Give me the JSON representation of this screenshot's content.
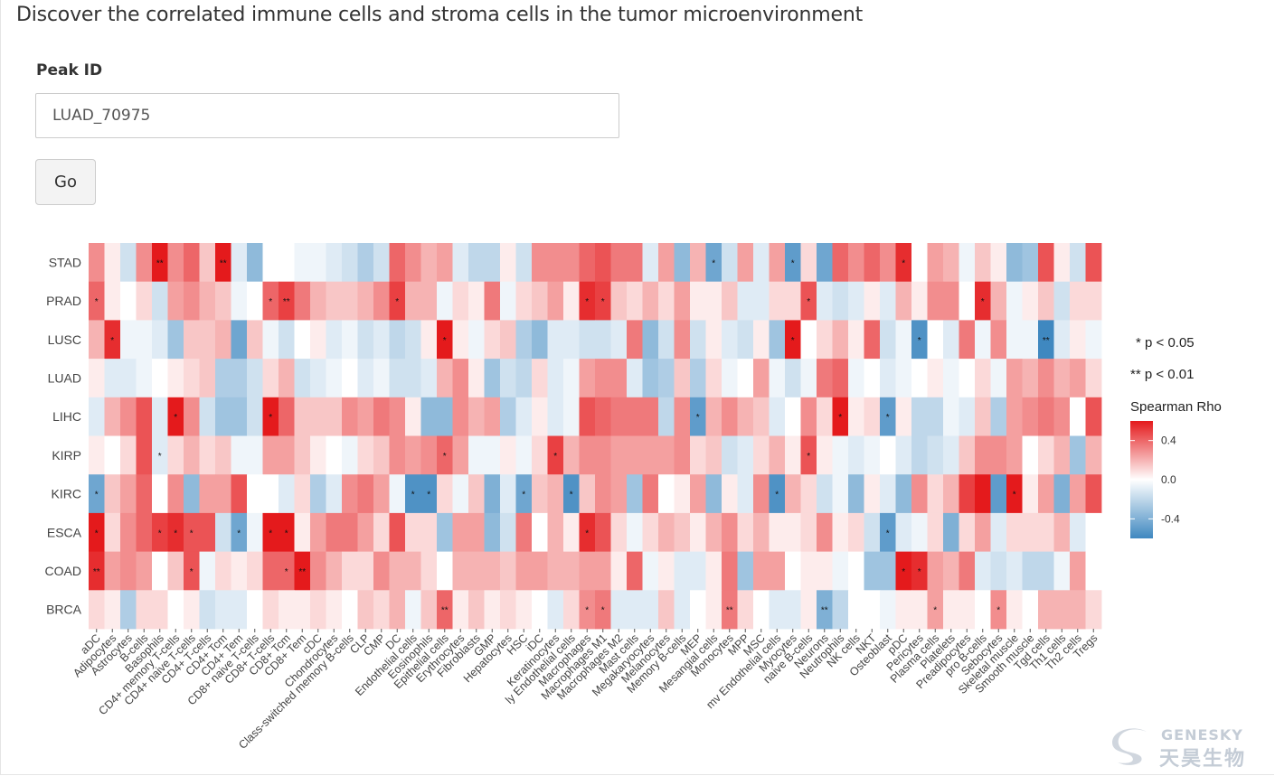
{
  "page": {
    "title": "Discover the correlated immune cells and stroma cells in the tumor microenvironment"
  },
  "form": {
    "peak_label": "Peak ID",
    "peak_value": "LUAD_70975",
    "go_label": "Go"
  },
  "legend": {
    "p05": "* p < 0.05",
    "p01": "** p < 0.01",
    "title": "Spearman Rho",
    "ticks": [
      "0.4",
      "0.0",
      "-0.4"
    ],
    "tick_values": [
      0.4,
      0.0,
      -0.4
    ]
  },
  "colors": {
    "high": "#e41a1c",
    "mid": "#ffffff",
    "low": "#3f88c0"
  },
  "logo": {
    "en": "GENESKY",
    "cn": "天昊生物"
  },
  "chart_data": {
    "type": "heatmap",
    "rows": [
      "STAD",
      "PRAD",
      "LUSC",
      "LUAD",
      "LIHC",
      "KIRP",
      "KIRC",
      "ESCA",
      "COAD",
      "BRCA"
    ],
    "columns": [
      "aDC",
      "Adipocytes",
      "Astrocytes",
      "B-cells",
      "Basophils",
      "CD4+ memory T-cells",
      "CD4+ naive T-cells",
      "CD4+ T-cells",
      "CD4+ Tcm",
      "CD4+ Tem",
      "CD8+ naive T-cells",
      "CD8+ T-cells",
      "CD8+ Tcm",
      "CD8+ Tem",
      "cDC",
      "Chondrocytes",
      "Class-switched memory B-cells",
      "CLP",
      "CMP",
      "DC",
      "Endothelial cells",
      "Eosinophils",
      "Epithelial cells",
      "Erythrocytes",
      "Fibroblasts",
      "GMP",
      "Hepatocytes",
      "HSC",
      "iDC",
      "Keratinocytes",
      "ly Endothelial cells",
      "Macrophages",
      "Macrophages M1",
      "Macrophages M2",
      "Mast cells",
      "Megakaryocytes",
      "Melanocytes",
      "Memory B-cells",
      "MEP",
      "Mesangial cells",
      "Monocytes",
      "MPP",
      "MSC",
      "mv Endothelial cells",
      "Myocytes",
      "naive B-cells",
      "Neurons",
      "Neutrophils",
      "NK cells",
      "NKT",
      "Osteoblast",
      "pDC",
      "Pericytes",
      "Plasma cells",
      "Platelets",
      "Preadipocytes",
      "pro B-cells",
      "Sebocytes",
      "Skeletal muscle",
      "Smooth muscle",
      "Tgd cells",
      "Th1 cells",
      "Th2 cells",
      "Tregs"
    ],
    "value_range": [
      -0.6,
      0.6
    ],
    "values": [
      [
        0.3,
        0.05,
        -0.15,
        0.3,
        0.6,
        0.3,
        0.4,
        0.15,
        0.65,
        -0.1,
        -0.35,
        0.0,
        0.0,
        -0.05,
        -0.05,
        -0.1,
        -0.15,
        -0.25,
        -0.15,
        0.4,
        0.3,
        0.2,
        0.25,
        -0.1,
        -0.2,
        -0.2,
        0.05,
        -0.15,
        0.3,
        0.3,
        0.3,
        0.4,
        0.45,
        0.35,
        0.35,
        -0.1,
        0.25,
        -0.35,
        0.2,
        -0.45,
        -0.15,
        0.25,
        -0.1,
        0.25,
        -0.5,
        0.1,
        -0.45,
        0.4,
        0.3,
        0.4,
        0.3,
        0.55,
        0.0,
        0.25,
        0.2,
        -0.05,
        0.15,
        0.05,
        -0.35,
        -0.3,
        0.45,
        0.05,
        -0.15,
        0.45
      ],
      [
        0.4,
        0.05,
        0.0,
        0.1,
        -0.15,
        0.25,
        0.3,
        0.2,
        0.15,
        -0.05,
        0.0,
        0.4,
        0.5,
        0.35,
        0.2,
        0.15,
        0.15,
        0.2,
        0.3,
        0.5,
        0.2,
        0.2,
        -0.05,
        0.1,
        0.05,
        0.35,
        -0.05,
        0.1,
        0.15,
        0.25,
        0.05,
        0.55,
        0.5,
        0.15,
        0.1,
        0.2,
        0.1,
        0.25,
        0.05,
        0.05,
        0.15,
        -0.1,
        -0.1,
        0.1,
        0.1,
        0.45,
        -0.1,
        -0.15,
        -0.1,
        0.05,
        -0.1,
        0.2,
        0.05,
        0.3,
        0.3,
        0.0,
        0.55,
        0.2,
        -0.05,
        0.05,
        0.15,
        -0.15,
        0.1,
        0.1
      ],
      [
        0.2,
        0.55,
        -0.05,
        -0.05,
        -0.1,
        -0.3,
        0.15,
        0.15,
        0.2,
        -0.45,
        0.15,
        -0.05,
        -0.15,
        0.0,
        0.05,
        -0.1,
        -0.05,
        -0.15,
        -0.1,
        -0.2,
        -0.15,
        0.05,
        0.6,
        0.05,
        -0.05,
        0.1,
        0.15,
        -0.25,
        -0.35,
        -0.1,
        -0.1,
        -0.15,
        -0.15,
        -0.1,
        0.35,
        -0.35,
        -0.15,
        0.3,
        -0.15,
        0.05,
        -0.1,
        -0.15,
        0.05,
        -0.3,
        0.65,
        0.0,
        0.1,
        0.2,
        0.05,
        0.4,
        -0.15,
        -0.05,
        -0.55,
        0.0,
        -0.1,
        0.35,
        -0.05,
        0.3,
        -0.05,
        -0.05,
        -0.6,
        -0.1,
        0.05,
        -0.05
      ],
      [
        0.05,
        -0.1,
        -0.1,
        -0.05,
        0.0,
        0.05,
        0.1,
        0.15,
        -0.25,
        -0.25,
        -0.15,
        0.1,
        0.2,
        -0.15,
        -0.1,
        -0.05,
        0.0,
        -0.1,
        -0.05,
        -0.15,
        -0.15,
        -0.1,
        0.2,
        0.3,
        0.05,
        -0.3,
        -0.15,
        -0.2,
        0.1,
        -0.1,
        -0.05,
        0.25,
        0.3,
        0.3,
        -0.1,
        -0.3,
        -0.25,
        0.15,
        -0.25,
        0.1,
        -0.05,
        0.0,
        0.25,
        -0.05,
        -0.15,
        -0.05,
        0.35,
        0.4,
        -0.05,
        0.0,
        -0.1,
        -0.05,
        0.0,
        0.05,
        -0.05,
        0.0,
        0.1,
        -0.05,
        0.25,
        0.2,
        0.3,
        0.2,
        0.25,
        0.1
      ],
      [
        -0.1,
        0.2,
        0.3,
        0.45,
        -0.1,
        0.65,
        0.3,
        -0.15,
        -0.3,
        -0.3,
        -0.15,
        0.65,
        0.4,
        0.15,
        0.15,
        0.15,
        0.3,
        0.25,
        0.35,
        0.3,
        0.05,
        -0.35,
        -0.35,
        0.3,
        0.2,
        0.25,
        -0.25,
        -0.1,
        0.05,
        -0.1,
        -0.05,
        0.45,
        0.4,
        0.35,
        0.35,
        0.35,
        -0.2,
        0.3,
        -0.5,
        0.2,
        0.3,
        0.2,
        0.15,
        -0.1,
        0.0,
        0.3,
        0.1,
        0.65,
        0.05,
        0.1,
        -0.5,
        0.05,
        -0.2,
        -0.2,
        -0.05,
        -0.1,
        0.15,
        -0.25,
        0.25,
        0.3,
        0.35,
        0.3,
        0.0,
        0.45
      ],
      [
        0.05,
        0.0,
        0.1,
        0.45,
        -0.1,
        0.1,
        0.2,
        0.1,
        0.15,
        -0.05,
        -0.05,
        0.25,
        0.25,
        0.15,
        0.05,
        0.0,
        -0.05,
        0.1,
        0.15,
        0.3,
        0.25,
        0.3,
        0.4,
        0.25,
        -0.05,
        -0.05,
        0.05,
        -0.05,
        0.1,
        0.5,
        0.2,
        0.3,
        0.3,
        0.25,
        0.25,
        0.25,
        0.25,
        0.3,
        0.1,
        0.15,
        -0.15,
        -0.1,
        0.1,
        0.2,
        0.05,
        0.45,
        0.05,
        -0.05,
        -0.1,
        -0.05,
        0.0,
        -0.1,
        -0.2,
        -0.15,
        -0.1,
        0.15,
        0.3,
        0.3,
        0.25,
        0.0,
        0.1,
        0.2,
        -0.3,
        0.2
      ],
      [
        -0.45,
        0.15,
        0.25,
        0.4,
        0.0,
        0.3,
        -0.35,
        0.25,
        0.25,
        0.45,
        0.0,
        0.0,
        -0.1,
        0.1,
        -0.25,
        -0.1,
        0.3,
        0.35,
        0.25,
        -0.05,
        -0.55,
        -0.55,
        0.1,
        -0.05,
        0.15,
        -0.4,
        -0.1,
        -0.45,
        0.15,
        0.2,
        -0.55,
        0.15,
        0.3,
        0.25,
        -0.3,
        0.35,
        0.0,
        0.05,
        0.25,
        -0.35,
        0.05,
        -0.1,
        0.3,
        -0.55,
        0.2,
        0.1,
        -0.15,
        -0.05,
        -0.35,
        0.05,
        -0.1,
        -0.35,
        0.3,
        0.1,
        0.2,
        0.5,
        0.6,
        -0.5,
        0.65,
        0.05,
        0.25,
        -0.4,
        0.25,
        0.45
      ],
      [
        0.6,
        0.1,
        0.3,
        0.4,
        0.5,
        0.55,
        0.45,
        0.45,
        -0.15,
        -0.45,
        -0.05,
        0.6,
        0.6,
        0.05,
        0.25,
        0.35,
        0.35,
        0.25,
        0.1,
        0.45,
        0.1,
        0.1,
        -0.3,
        0.25,
        0.25,
        -0.35,
        -0.15,
        0.35,
        0.0,
        0.2,
        0.05,
        0.55,
        0.45,
        0.1,
        -0.05,
        0.1,
        0.2,
        0.15,
        0.05,
        0.2,
        0.3,
        0.1,
        0.2,
        0.05,
        0.05,
        0.1,
        0.3,
        0.05,
        0.1,
        -0.15,
        -0.5,
        -0.1,
        -0.05,
        0.1,
        -0.4,
        0.1,
        0.25,
        -0.1,
        0.1,
        0.1,
        0.1,
        0.2,
        -0.1,
        0.0
      ],
      [
        0.55,
        0.25,
        0.3,
        0.25,
        0.0,
        0.15,
        0.45,
        -0.05,
        0.1,
        0.05,
        0.1,
        0.4,
        0.4,
        0.8,
        0.3,
        0.2,
        0.1,
        0.1,
        0.3,
        0.2,
        0.2,
        0.1,
        0.0,
        0.2,
        0.2,
        0.2,
        0.15,
        0.25,
        0.25,
        0.2,
        0.2,
        0.25,
        0.25,
        0.05,
        0.4,
        -0.05,
        0.05,
        -0.1,
        -0.1,
        0.05,
        0.35,
        -0.3,
        0.25,
        0.25,
        0.0,
        0.05,
        0.05,
        -0.05,
        0.0,
        -0.3,
        -0.3,
        0.6,
        0.55,
        0.25,
        0.2,
        0.35,
        -0.1,
        -0.15,
        -0.1,
        -0.2,
        -0.2,
        -0.05,
        0.25,
        0.0
      ],
      [
        0.1,
        0.05,
        -0.25,
        0.1,
        0.1,
        0.0,
        0.05,
        -0.15,
        -0.1,
        -0.1,
        0.0,
        0.1,
        0.05,
        0.05,
        0.1,
        0.05,
        0.0,
        0.15,
        0.1,
        0.2,
        -0.05,
        0.15,
        0.4,
        0.05,
        0.15,
        0.05,
        0.1,
        0.05,
        0.0,
        -0.1,
        0.1,
        0.3,
        0.35,
        -0.1,
        -0.1,
        -0.1,
        0.15,
        -0.1,
        0.0,
        0.05,
        0.35,
        0.1,
        0.0,
        -0.1,
        -0.1,
        0.05,
        -0.4,
        -0.2,
        0.0,
        0.0,
        -0.05,
        0.05,
        0.05,
        0.25,
        0.05,
        0.05,
        0.0,
        0.3,
        0.05,
        0.0,
        0.2,
        0.2,
        0.2,
        0.1
      ]
    ],
    "significance": [
      [
        [
          "STAD",
          "Basophils"
        ],
        "**"
      ],
      [
        [
          "STAD",
          "CD4+ Tcm"
        ],
        "**"
      ],
      [
        [
          "STAD",
          "Mesangial cells"
        ],
        "*"
      ],
      [
        [
          "STAD",
          "Myocytes"
        ],
        "*"
      ],
      [
        [
          "STAD",
          "pDC"
        ],
        "*"
      ],
      [
        [
          "PRAD",
          "aDC"
        ],
        "*"
      ],
      [
        [
          "PRAD",
          "CD8+ T-cells"
        ],
        "*"
      ],
      [
        [
          "PRAD",
          "CD8+ Tcm"
        ],
        "**"
      ],
      [
        [
          "PRAD",
          "DC"
        ],
        "*"
      ],
      [
        [
          "PRAD",
          "Macrophages"
        ],
        "*"
      ],
      [
        [
          "PRAD",
          "Macrophages M1"
        ],
        "*"
      ],
      [
        [
          "PRAD",
          "naive B-cells"
        ],
        "*"
      ],
      [
        [
          "PRAD",
          "pro B-cells"
        ],
        "*"
      ],
      [
        [
          "LUSC",
          "Adipocytes"
        ],
        "*"
      ],
      [
        [
          "LUSC",
          "Epithelial cells"
        ],
        "*"
      ],
      [
        [
          "LUSC",
          "Myocytes"
        ],
        "*"
      ],
      [
        [
          "LUSC",
          "Pericytes"
        ],
        "*"
      ],
      [
        [
          "LUSC",
          "Tgd cells"
        ],
        "**"
      ],
      [
        [
          "LIHC",
          "CD4+ memory T-cells"
        ],
        "*"
      ],
      [
        [
          "LIHC",
          "CD8+ T-cells"
        ],
        "*"
      ],
      [
        [
          "LIHC",
          "MEP"
        ],
        "*"
      ],
      [
        [
          "LIHC",
          "Neutrophils"
        ],
        "*"
      ],
      [
        [
          "LIHC",
          "Osteoblast"
        ],
        "*"
      ],
      [
        [
          "KIRP",
          "Basophils"
        ],
        "*"
      ],
      [
        [
          "KIRP",
          "Epithelial cells"
        ],
        "*"
      ],
      [
        [
          "KIRP",
          "Keratinocytes"
        ],
        "*"
      ],
      [
        [
          "KIRP",
          "naive B-cells"
        ],
        "*"
      ],
      [
        [
          "KIRC",
          "aDC"
        ],
        "*"
      ],
      [
        [
          "KIRC",
          "Endothelial cells"
        ],
        "*"
      ],
      [
        [
          "KIRC",
          "Eosinophils"
        ],
        "*"
      ],
      [
        [
          "KIRC",
          "HSC"
        ],
        "*"
      ],
      [
        [
          "KIRC",
          "ly Endothelial cells"
        ],
        "*"
      ],
      [
        [
          "KIRC",
          "mv Endothelial cells"
        ],
        "*"
      ],
      [
        [
          "KIRC",
          "Skeletal muscle"
        ],
        "*"
      ],
      [
        [
          "ESCA",
          "aDC"
        ],
        "*"
      ],
      [
        [
          "ESCA",
          "Basophils"
        ],
        "*"
      ],
      [
        [
          "ESCA",
          "CD4+ memory T-cells"
        ],
        "*"
      ],
      [
        [
          "ESCA",
          "CD4+ naive T-cells"
        ],
        "*"
      ],
      [
        [
          "ESCA",
          "CD4+ Tem"
        ],
        "*"
      ],
      [
        [
          "ESCA",
          "CD8+ T-cells"
        ],
        "*"
      ],
      [
        [
          "ESCA",
          "CD8+ Tcm"
        ],
        "*"
      ],
      [
        [
          "ESCA",
          "Macrophages"
        ],
        "*"
      ],
      [
        [
          "ESCA",
          "Osteoblast"
        ],
        "*"
      ],
      [
        [
          "COAD",
          "aDC"
        ],
        "**"
      ],
      [
        [
          "COAD",
          "CD4+ naive T-cells"
        ],
        "*"
      ],
      [
        [
          "COAD",
          "CD8+ Tcm"
        ],
        "*"
      ],
      [
        [
          "COAD",
          "CD8+ Tem"
        ],
        "**"
      ],
      [
        [
          "COAD",
          "pDC"
        ],
        "*"
      ],
      [
        [
          "COAD",
          "Pericytes"
        ],
        "*"
      ],
      [
        [
          "BRCA",
          "Epithelial cells"
        ],
        "**"
      ],
      [
        [
          "BRCA",
          "Macrophages"
        ],
        "*"
      ],
      [
        [
          "BRCA",
          "Macrophages M1"
        ],
        "*"
      ],
      [
        [
          "BRCA",
          "Monocytes"
        ],
        "**"
      ],
      [
        [
          "BRCA",
          "Neurons"
        ],
        "**"
      ],
      [
        [
          "BRCA",
          "Plasma cells"
        ],
        "*"
      ],
      [
        [
          "BRCA",
          "Sebocytes"
        ],
        "*"
      ]
    ]
  }
}
